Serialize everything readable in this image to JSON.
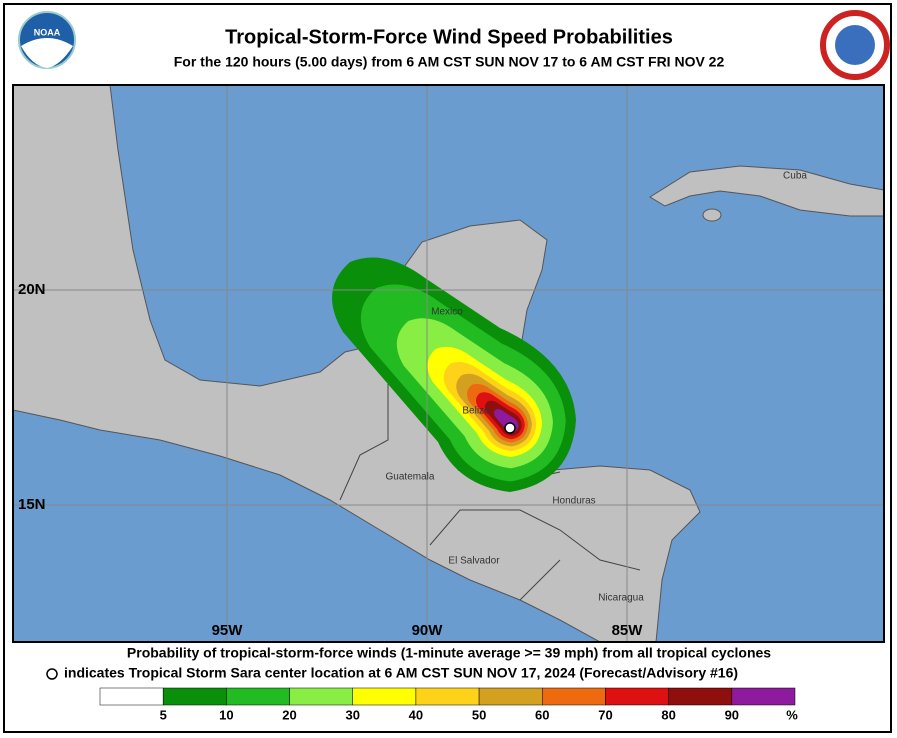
{
  "header": {
    "title": "Tropical-Storm-Force Wind Speed Probabilities",
    "subtitle": "For the 120 hours (5.00 days) from 6 AM CST SUN NOV 17 to 6 AM CST FRI NOV 22",
    "logo_left": "NOAA"
  },
  "map": {
    "lat_labels": [
      "20N",
      "15N"
    ],
    "lon_labels": [
      "95W",
      "90W",
      "85W"
    ],
    "place_labels": [
      "Cuba",
      "Mexico",
      "Belize",
      "Guatemala",
      "Honduras",
      "El Salvador",
      "Nicaragua"
    ]
  },
  "footer": {
    "line1": "Probability of tropical-storm-force winds (1-minute average >= 39 mph) from all tropical cyclones",
    "line2": "indicates Tropical Storm Sara center location at 6 AM CST SUN NOV 17, 2024 (Forecast/Advisory #16)"
  },
  "legend": {
    "colors": [
      "#ffffff",
      "#0a8f0a",
      "#22bb22",
      "#88ee44",
      "#ffff00",
      "#ffd21a",
      "#d4a020",
      "#ee6a10",
      "#dd1111",
      "#8f0e0e",
      "#8e1a9e"
    ],
    "labels": [
      "5",
      "10",
      "20",
      "30",
      "40",
      "50",
      "60",
      "70",
      "80",
      "90"
    ],
    "unit": "%"
  }
}
